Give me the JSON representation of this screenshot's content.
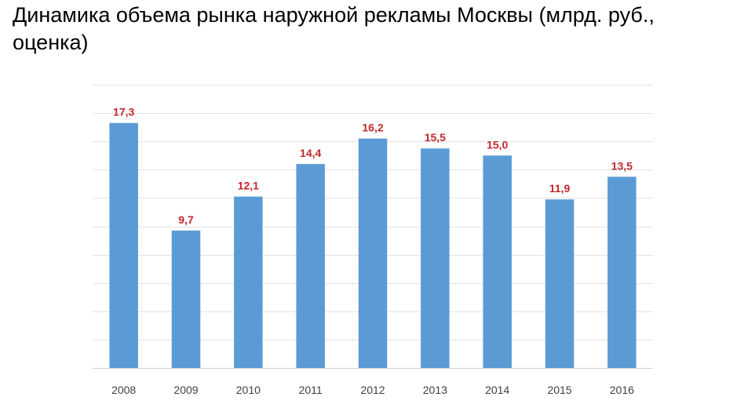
{
  "chart_data": {
    "type": "bar",
    "title": "Динамика объема рынка наружной рекламы Москвы (млрд. руб., оценка)",
    "xlabel": "",
    "ylabel": "",
    "categories": [
      "2008",
      "2009",
      "2010",
      "2011",
      "2012",
      "2013",
      "2014",
      "2015",
      "2016"
    ],
    "values": [
      17.3,
      9.7,
      12.1,
      14.4,
      16.2,
      15.5,
      15.0,
      11.9,
      13.5
    ],
    "data_labels": [
      "17,3",
      "9,7",
      "12,1",
      "14,4",
      "16,2",
      "15,5",
      "15,0",
      "11,9",
      "13,5"
    ],
    "ylim": [
      0,
      20
    ],
    "grid": true,
    "legend": "none",
    "colors": {
      "bar": "#5b9bd5",
      "label": "#c0292b",
      "tick": "#404040",
      "grid": "#e3e3e3"
    }
  }
}
